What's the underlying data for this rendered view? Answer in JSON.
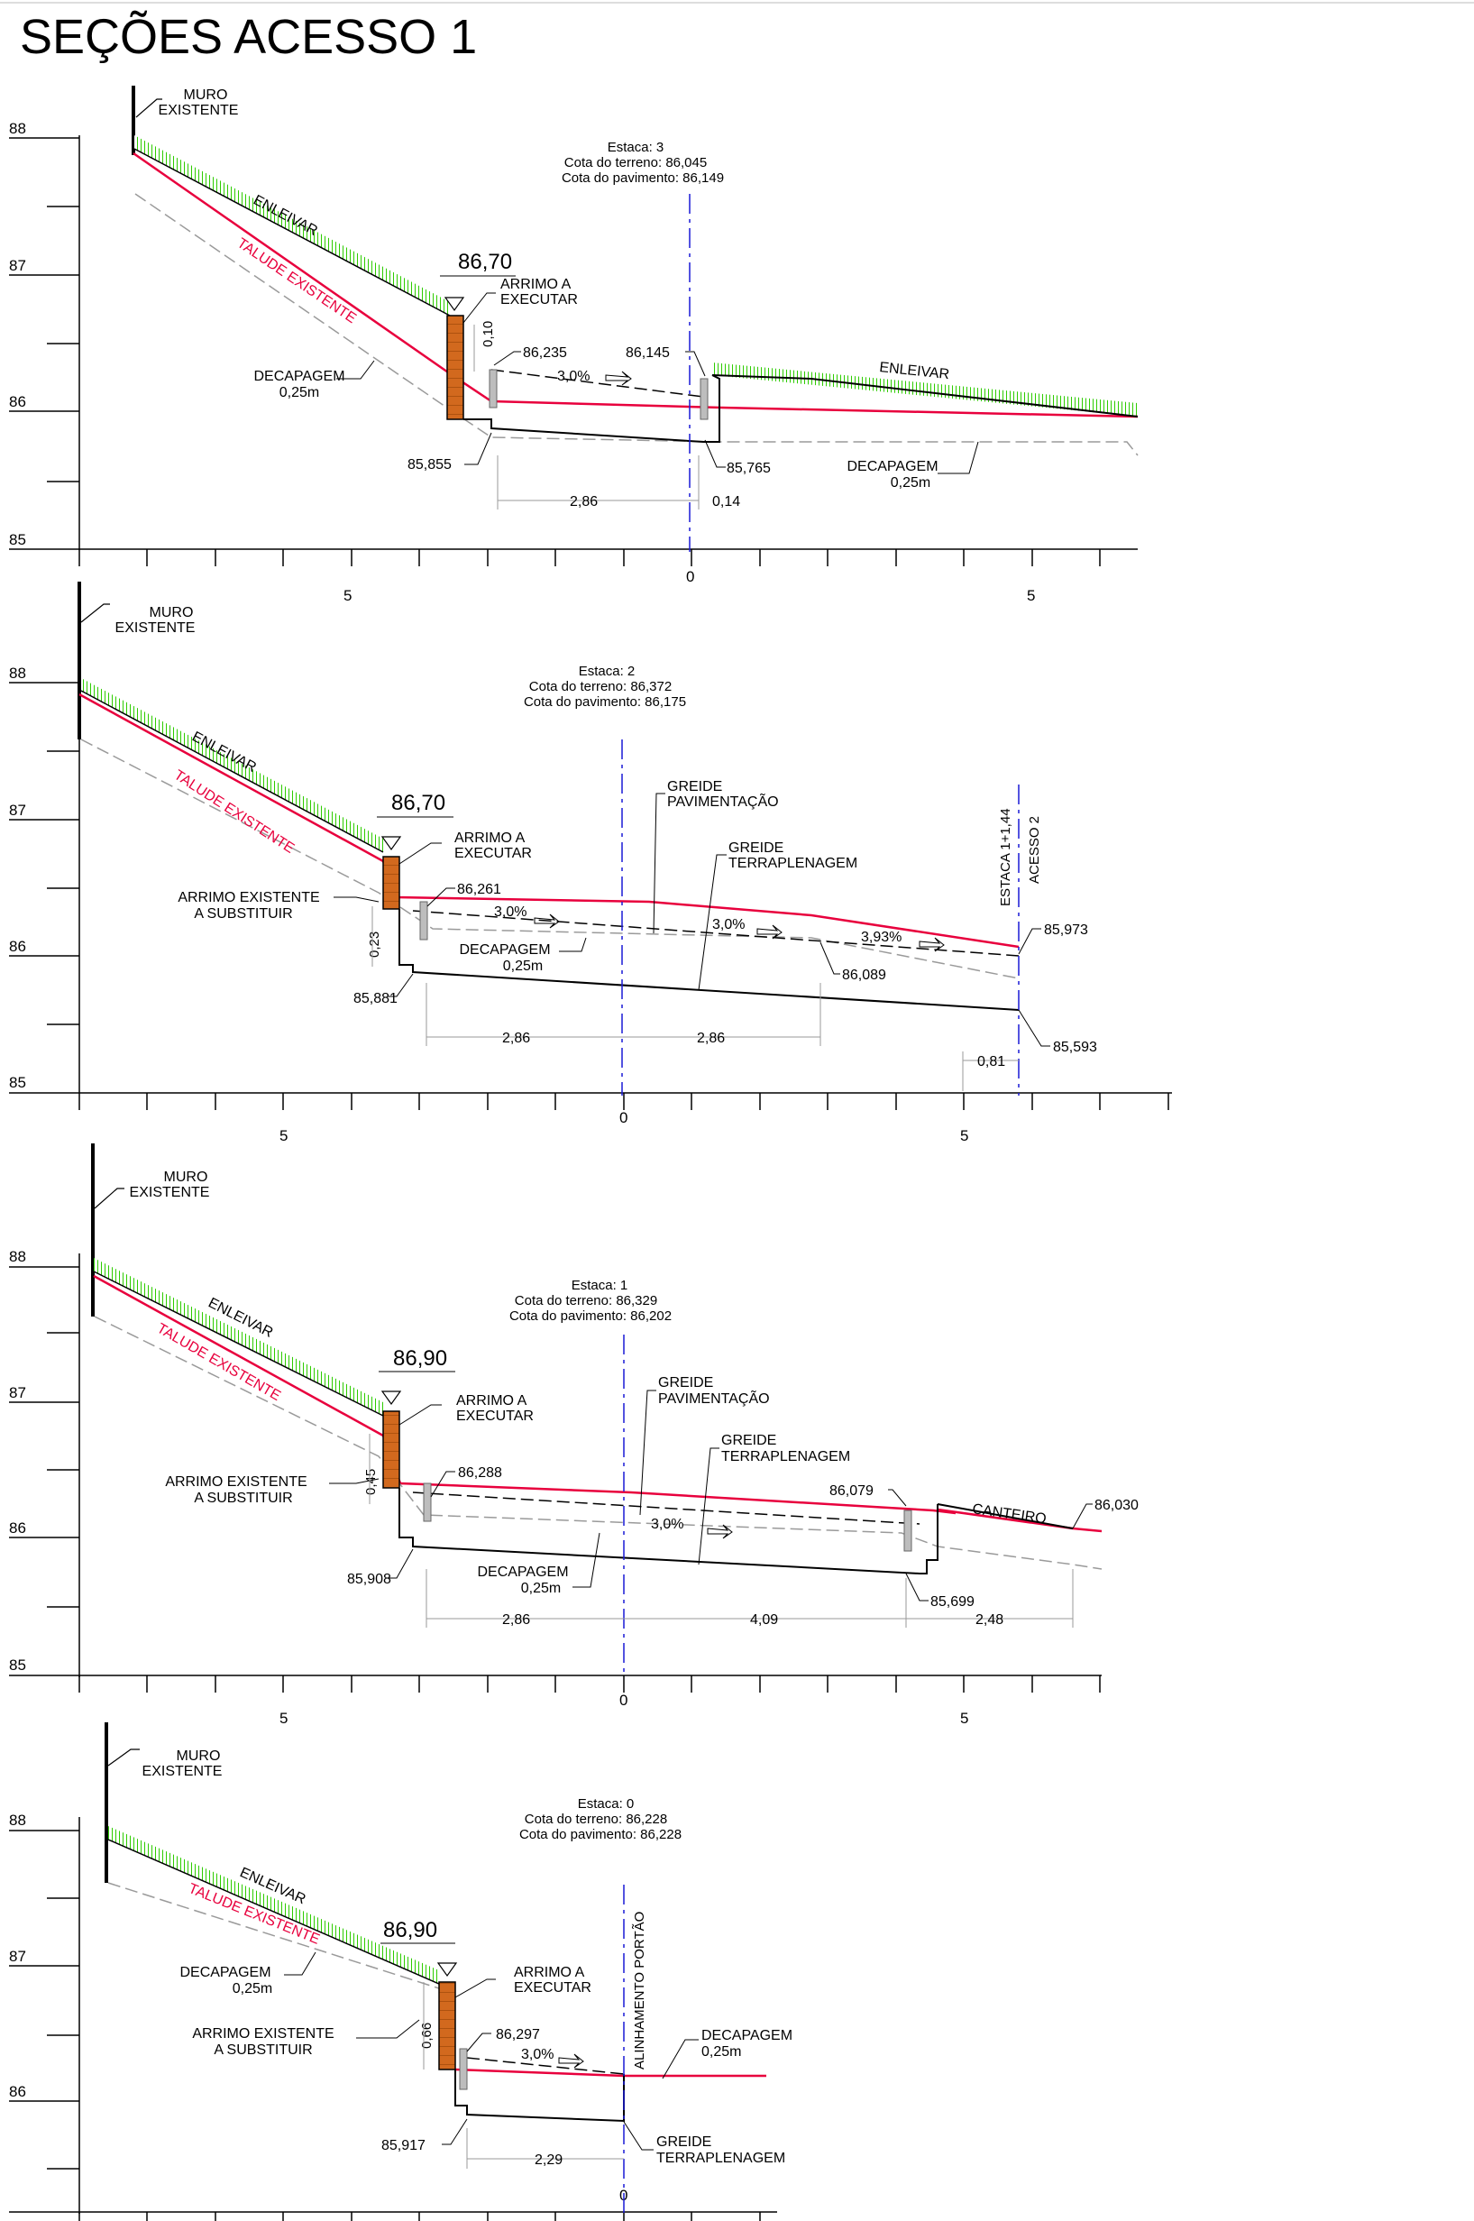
{
  "title": "SEÇÕES ACESSO 1",
  "colors": {
    "talude": "#e8003d",
    "enleivar": "#2ecc00",
    "arrimo": "#d2691e",
    "eixo": "#1a1ad6",
    "decapagem": "#9a9a9a"
  },
  "axis": {
    "y_ticks": [
      "88",
      "87",
      "86",
      "85"
    ],
    "x_ticks": [
      "5",
      "0",
      "5"
    ]
  },
  "sections": [
    {
      "id": "s3",
      "estaca": "Estaca:  3",
      "cota_terreno": "Cota do terreno:  86,045",
      "cota_pavimento": "Cota do pavimento:  86,149",
      "muro": [
        "MURO",
        "EXISTENTE"
      ],
      "enleivar": "ENLEIVAR",
      "enleivar2": "ENLEIVAR",
      "talude": "TALUDE EXISTENTE",
      "arrimo_elev": "86,70",
      "arrimo": [
        "ARRIMO A",
        "EXECUTAR"
      ],
      "decapagem_left": [
        "DECAPAGEM",
        "0,25m"
      ],
      "decapagem_right": [
        "DECAPAGEM",
        "0,25m"
      ],
      "h_label": "0,10",
      "slope": "3,0%",
      "e1": "86,235",
      "e2": "86,145",
      "e3": "85,855",
      "e4": "85,765",
      "d1": "2,86",
      "d2": "0,14"
    },
    {
      "id": "s2",
      "estaca": "Estaca:  2",
      "cota_terreno": "Cota do terreno:  86,372",
      "cota_pavimento": "Cota do pavimento:  86,175",
      "muro": [
        "MURO",
        "EXISTENTE"
      ],
      "enleivar": "ENLEIVAR",
      "talude": "TALUDE EXISTENTE",
      "arrimo_elev": "86,70",
      "arrimo": [
        "ARRIMO A",
        "EXECUTAR"
      ],
      "arrimo_exist": [
        "ARRIMO EXISTENTE",
        "A SUBSTITUIR"
      ],
      "decapagem": [
        "DECAPAGEM",
        "0,25m"
      ],
      "greide_pav": [
        "GREIDE",
        "PAVIMENTAÇÃO"
      ],
      "greide_terr": [
        "GREIDE",
        "TERRAPLENAGEM"
      ],
      "estaca_marker": [
        "ESTACA 1+1,44",
        "ACESSO 2"
      ],
      "h_label": "0,23",
      "slope1": "3,0%",
      "slope2": "3,0%",
      "slope3": "3,93%",
      "e1": "86,261",
      "e2": "85,973",
      "e3": "86,089",
      "e4": "85,881",
      "e5": "85,593",
      "d1": "2,86",
      "d2": "2,86",
      "d3": "0,81"
    },
    {
      "id": "s1",
      "estaca": "Estaca:  1",
      "cota_terreno": "Cota do terreno:  86,329",
      "cota_pavimento": "Cota do pavimento:  86,202",
      "muro": [
        "MURO",
        "EXISTENTE"
      ],
      "enleivar": "ENLEIVAR",
      "talude": "TALUDE EXISTENTE",
      "arrimo_elev": "86,90",
      "arrimo": [
        "ARRIMO A",
        "EXECUTAR"
      ],
      "arrimo_exist": [
        "ARRIMO EXISTENTE",
        "A SUBSTITUIR"
      ],
      "decapagem": [
        "DECAPAGEM",
        "0,25m"
      ],
      "greide_pav": [
        "GREIDE",
        "PAVIMENTAÇÃO"
      ],
      "greide_terr": [
        "GREIDE",
        "TERRAPLENAGEM"
      ],
      "canteiro": "CANTEIRO",
      "h_label": "0,45",
      "slope": "3,0%",
      "e1": "86,288",
      "e2": "86,079",
      "e3": "86,030",
      "e4": "85,908",
      "e5": "85,699",
      "d1": "2,86",
      "d2": "4,09",
      "d3": "2,48"
    },
    {
      "id": "s0",
      "estaca": "Estaca:  0",
      "cota_terreno": "Cota do terreno:  86,228",
      "cota_pavimento": "Cota do pavimento:  86,228",
      "muro": [
        "MURO",
        "EXISTENTE"
      ],
      "enleivar": "ENLEIVAR",
      "talude": "TALUDE EXISTENTE",
      "arrimo_elev": "86,90",
      "arrimo": [
        "ARRIMO A",
        "EXECUTAR"
      ],
      "arrimo_exist": [
        "ARRIMO EXISTENTE",
        "A SUBSTITUIR"
      ],
      "decapagem_left": [
        "DECAPAGEM",
        "0,25m"
      ],
      "decapagem_right": [
        "DECAPAGEM",
        "0,25m"
      ],
      "greide_terr": [
        "GREIDE",
        "TERRAPLENAGEM"
      ],
      "alinhamento": "ALINHAMENTO PORTÃO",
      "h_label": "0,66",
      "slope": "3,0%",
      "e1": "86,297",
      "e2": "85,917",
      "d1": "2,29"
    }
  ]
}
